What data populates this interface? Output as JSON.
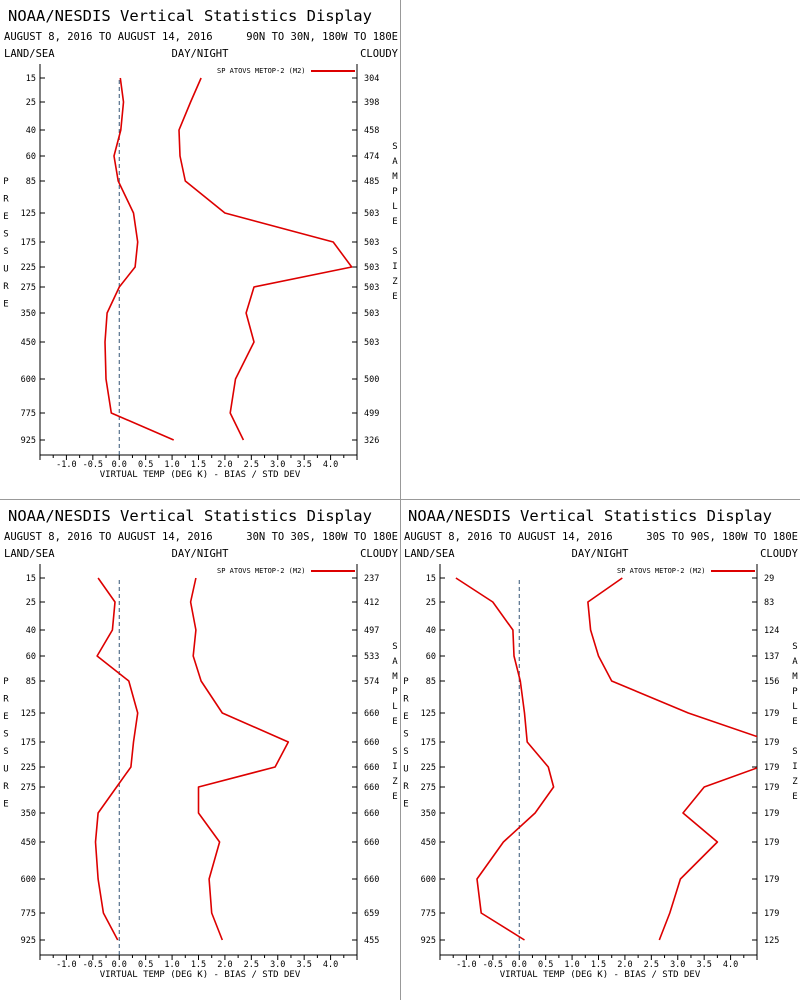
{
  "colors": {
    "series": "#dd0000",
    "axis": "#000000",
    "zero_line": "#335577",
    "divider": "#999999"
  },
  "chart_data": [
    {
      "type": "line",
      "title": "NOAA/NESDIS Vertical Statistics Display",
      "date_range": "AUGUST 8, 2016 TO AUGUST 14, 2016",
      "region": "90N TO 30N, 180W TO 180E",
      "label_left": "LAND/SEA",
      "label_center": "DAY/NIGHT",
      "label_right": "CLOUDY",
      "xlabel": "VIRTUAL TEMP (DEG K) - BIAS / STD DEV",
      "ylabel": "PRESSURE",
      "y2label": "SAMPLE SIZE",
      "xlim": [
        -1.5,
        4.5
      ],
      "xticks": [
        "-1.0",
        "-0.5",
        "0.0",
        "0.5",
        "1.0",
        "1.5",
        "2.0",
        "2.5",
        "3.0",
        "3.5",
        "4.0"
      ],
      "pressure_levels": [
        "15",
        "25",
        "40",
        "60",
        "85",
        "125",
        "175",
        "225",
        "275",
        "350",
        "450",
        "600",
        "775",
        "925"
      ],
      "legend": "SP ATOVS METOP-2 (M2)",
      "legend_position": "top-right",
      "series": [
        {
          "kind": "bias",
          "values": [
            0.02,
            0.08,
            0.03,
            -0.1,
            -0.02,
            0.27,
            0.35,
            0.3,
            0.0,
            -0.23,
            -0.27,
            -0.25,
            -0.15,
            1.03
          ]
        },
        {
          "kind": "std_dev",
          "values": [
            1.55,
            1.35,
            1.13,
            1.15,
            1.25,
            2.0,
            4.05,
            4.4,
            2.55,
            2.4,
            2.55,
            2.2,
            2.1,
            2.35
          ]
        }
      ],
      "sample_size": [
        "304",
        "398",
        "458",
        "474",
        "485",
        "503",
        "503",
        "503",
        "503",
        "503",
        "503",
        "500",
        "499",
        "326"
      ]
    },
    {
      "type": "line",
      "title": "NOAA/NESDIS Vertical Statistics Display",
      "date_range": "AUGUST 8, 2016 TO AUGUST 14, 2016",
      "region": "30N TO 30S, 180W TO 180E",
      "label_left": "LAND/SEA",
      "label_center": "DAY/NIGHT",
      "label_right": "CLOUDY",
      "xlabel": "VIRTUAL TEMP (DEG K) - BIAS / STD DEV",
      "ylabel": "PRESSURE",
      "y2label": "SAMPLE SIZE",
      "xlim": [
        -1.5,
        4.5
      ],
      "xticks": [
        "-1.0",
        "-0.5",
        "0.0",
        "0.5",
        "1.0",
        "1.5",
        "2.0",
        "2.5",
        "3.0",
        "3.5",
        "4.0"
      ],
      "pressure_levels": [
        "15",
        "25",
        "40",
        "60",
        "85",
        "125",
        "175",
        "225",
        "275",
        "350",
        "450",
        "600",
        "775",
        "925"
      ],
      "legend": "SP ATOVS METOP-2 (M2)",
      "legend_position": "top-right",
      "series": [
        {
          "kind": "bias",
          "values": [
            -0.4,
            -0.08,
            -0.13,
            -0.42,
            0.18,
            0.35,
            0.27,
            0.22,
            -0.05,
            -0.4,
            -0.45,
            -0.4,
            -0.3,
            -0.03
          ]
        },
        {
          "kind": "std_dev",
          "values": [
            1.45,
            1.35,
            1.45,
            1.4,
            1.55,
            1.95,
            3.2,
            2.95,
            1.5,
            1.5,
            1.9,
            1.7,
            1.75,
            1.95
          ]
        }
      ],
      "sample_size": [
        "237",
        "412",
        "497",
        "533",
        "574",
        "660",
        "660",
        "660",
        "660",
        "660",
        "660",
        "660",
        "659",
        "455"
      ]
    },
    {
      "type": "line",
      "title": "NOAA/NESDIS Vertical Statistics Display",
      "date_range": "AUGUST 8, 2016 TO AUGUST 14, 2016",
      "region": "30S TO 90S, 180W TO 180E",
      "label_left": "LAND/SEA",
      "label_center": "DAY/NIGHT",
      "label_right": "CLOUDY",
      "xlabel": "VIRTUAL TEMP (DEG K) - BIAS / STD DEV",
      "ylabel": "PRESSURE",
      "y2label": "SAMPLE SIZE",
      "xlim": [
        -1.5,
        4.5
      ],
      "xticks": [
        "-1.0",
        "-0.5",
        "0.0",
        "0.5",
        "1.0",
        "1.5",
        "2.0",
        "2.5",
        "3.0",
        "3.5",
        "4.0"
      ],
      "pressure_levels": [
        "15",
        "25",
        "40",
        "60",
        "85",
        "125",
        "175",
        "225",
        "275",
        "350",
        "450",
        "600",
        "775",
        "925"
      ],
      "legend": "SP ATOVS METOP-2 (M2)",
      "legend_position": "top-right",
      "series": [
        {
          "kind": "bias",
          "values": [
            -1.2,
            -0.5,
            -0.12,
            -0.1,
            0.02,
            0.1,
            0.15,
            0.55,
            0.65,
            0.3,
            -0.3,
            -0.8,
            -0.72,
            0.1
          ]
        },
        {
          "kind": "std_dev",
          "values": [
            1.95,
            1.3,
            1.35,
            1.5,
            1.75,
            3.2,
            4.8,
            4.55,
            3.5,
            3.1,
            3.75,
            3.05,
            2.85,
            2.65
          ]
        }
      ],
      "sample_size": [
        "29",
        "83",
        "124",
        "137",
        "156",
        "179",
        "179",
        "179",
        "179",
        "179",
        "179",
        "179",
        "179",
        "125"
      ]
    }
  ]
}
